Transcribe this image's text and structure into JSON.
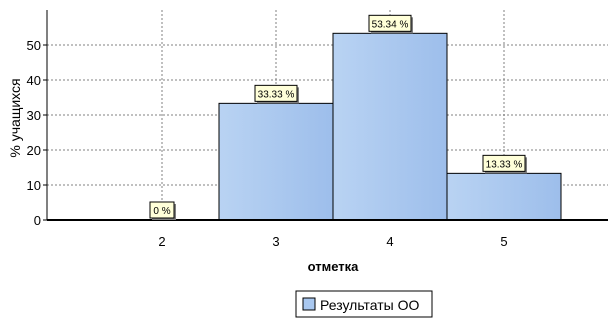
{
  "chart_data": {
    "type": "bar",
    "categories": [
      "2",
      "3",
      "4",
      "5"
    ],
    "series": [
      {
        "name": "Результаты ОО",
        "values": [
          0,
          33.33,
          53.34,
          13.33
        ]
      }
    ],
    "data_labels": [
      "0 %",
      "33.33 %",
      "53.34 %",
      "13.33 %"
    ],
    "xlabel": "отметка",
    "ylabel": "% учащихся",
    "ylim": [
      0,
      60
    ],
    "yticks": [
      0,
      10,
      20,
      30,
      40,
      50
    ],
    "grid": true,
    "legend_position": "bottom-center",
    "colors": {
      "bar_fill": "#A9C8F0",
      "bar_stroke": "#000000",
      "label_fill": "#FFFFD9",
      "grid": "#808080",
      "axis": "#000000"
    }
  }
}
